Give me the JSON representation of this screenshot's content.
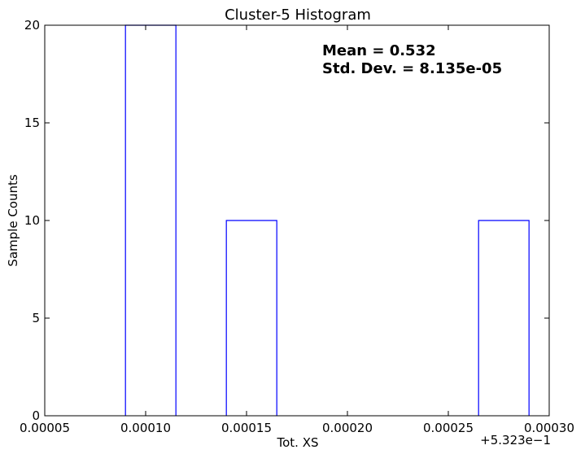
{
  "chart_data": {
    "type": "bar",
    "title": "Cluster-5 Histogram",
    "xlabel": "Tot. XS",
    "ylabel": "Sample Counts",
    "x_offset_label": "+5.323e−1",
    "annotations": {
      "mean": "Mean = 0.532",
      "std": "Std. Dev. = 8.135e-05"
    },
    "xlim": [
      5e-05,
      0.0003
    ],
    "ylim": [
      0,
      20
    ],
    "xticks": [
      5e-05,
      0.0001,
      0.00015,
      0.0002,
      0.00025,
      0.0003
    ],
    "xtick_labels": [
      "0.00005",
      "0.00010",
      "0.00015",
      "0.00020",
      "0.00025",
      "0.00030"
    ],
    "yticks": [
      0,
      5,
      10,
      15,
      20
    ],
    "ytick_labels": [
      "0",
      "5",
      "10",
      "15",
      "20"
    ],
    "bins": [
      {
        "x0": 9e-05,
        "x1": 0.000115,
        "count": 20
      },
      {
        "x0": 0.00014,
        "x1": 0.000165,
        "count": 10
      },
      {
        "x0": 0.000265,
        "x1": 0.00029,
        "count": 10
      }
    ],
    "colors": {
      "bar_edge": "#0000ff",
      "axes": "#000000"
    },
    "grid": false,
    "histtype": "step"
  }
}
